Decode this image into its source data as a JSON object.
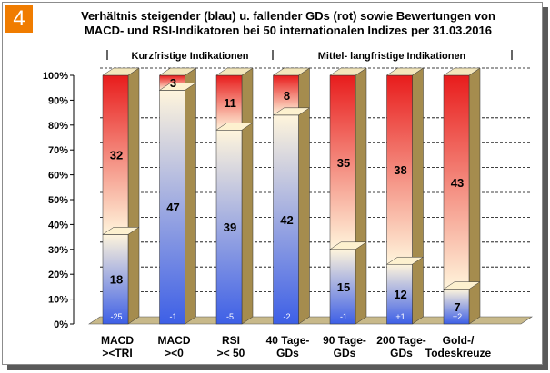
{
  "badge": "4",
  "title_line1": "Verhältnis steigender (blau) u. fallender GDs (rot) sowie Bewertungen von",
  "title_line2": "MACD- und RSI-Indikatoren bei 50 internationalen Indizes per 31.03.2016",
  "colors": {
    "blue_bottom": "#3d5fe6",
    "blue_top": "#fff5dc",
    "red_top": "#e81c1c",
    "red_bottom": "#fff5dc",
    "floor": "#c8b98a",
    "side": "#a58c4e"
  },
  "chart_data": {
    "type": "bar",
    "stacked": true,
    "percent": true,
    "group_labels": [
      "Kurzfristige Indikationen",
      "Mittel- langfristige Indikationen"
    ],
    "categories": [
      [
        "MACD",
        "><TRI"
      ],
      [
        "MACD",
        "><0"
      ],
      [
        "RSI",
        ">< 50"
      ],
      [
        "40 Tage-",
        "GDs"
      ],
      [
        "90 Tage-",
        "GDs"
      ],
      [
        "200 Tage-",
        "GDs"
      ],
      [
        "Gold-/",
        "Todeskreuze"
      ]
    ],
    "series": [
      {
        "color": "blue",
        "values": [
          18,
          47,
          39,
          42,
          15,
          12,
          7
        ]
      },
      {
        "color": "red",
        "values": [
          32,
          3,
          11,
          8,
          35,
          38,
          43
        ]
      }
    ],
    "diffs": [
      "-25",
      "-1",
      "-5",
      "-2",
      "-1",
      "+1",
      "+2"
    ],
    "yticks": [
      "0%",
      "10%",
      "20%",
      "30%",
      "40%",
      "50%",
      "60%",
      "70%",
      "80%",
      "90%",
      "100%"
    ],
    "ylim": [
      0,
      100
    ],
    "grid": true
  }
}
